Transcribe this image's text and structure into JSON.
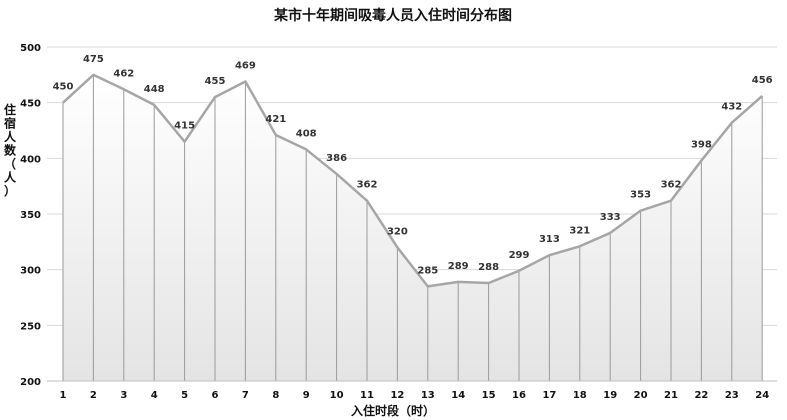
{
  "chart_data": {
    "type": "line",
    "title": "某市十年期间吸毒人员入住时间分布图",
    "xlabel": "入住时段（时）",
    "ylabel": "住宿人数（人）",
    "categories": [
      "1",
      "2",
      "3",
      "4",
      "5",
      "6",
      "7",
      "8",
      "9",
      "10",
      "11",
      "12",
      "13",
      "14",
      "15",
      "16",
      "17",
      "18",
      "19",
      "20",
      "21",
      "22",
      "23",
      "24"
    ],
    "series": [
      {
        "values": [
          450,
          475,
          462,
          448,
          415,
          455,
          469,
          421,
          408,
          386,
          362,
          320,
          285,
          289,
          288,
          299,
          313,
          321,
          333,
          353,
          362,
          398,
          432,
          456
        ]
      }
    ],
    "ylim": [
      200,
      500
    ],
    "yticks": [
      200,
      250,
      300,
      350,
      400,
      450,
      500
    ],
    "grid": true,
    "drop_lines": true,
    "area_fill": "gradient",
    "colors": {
      "line": "#a6a6a6",
      "grid": "#d9d9d9",
      "drop": "#9a9a9a"
    }
  }
}
